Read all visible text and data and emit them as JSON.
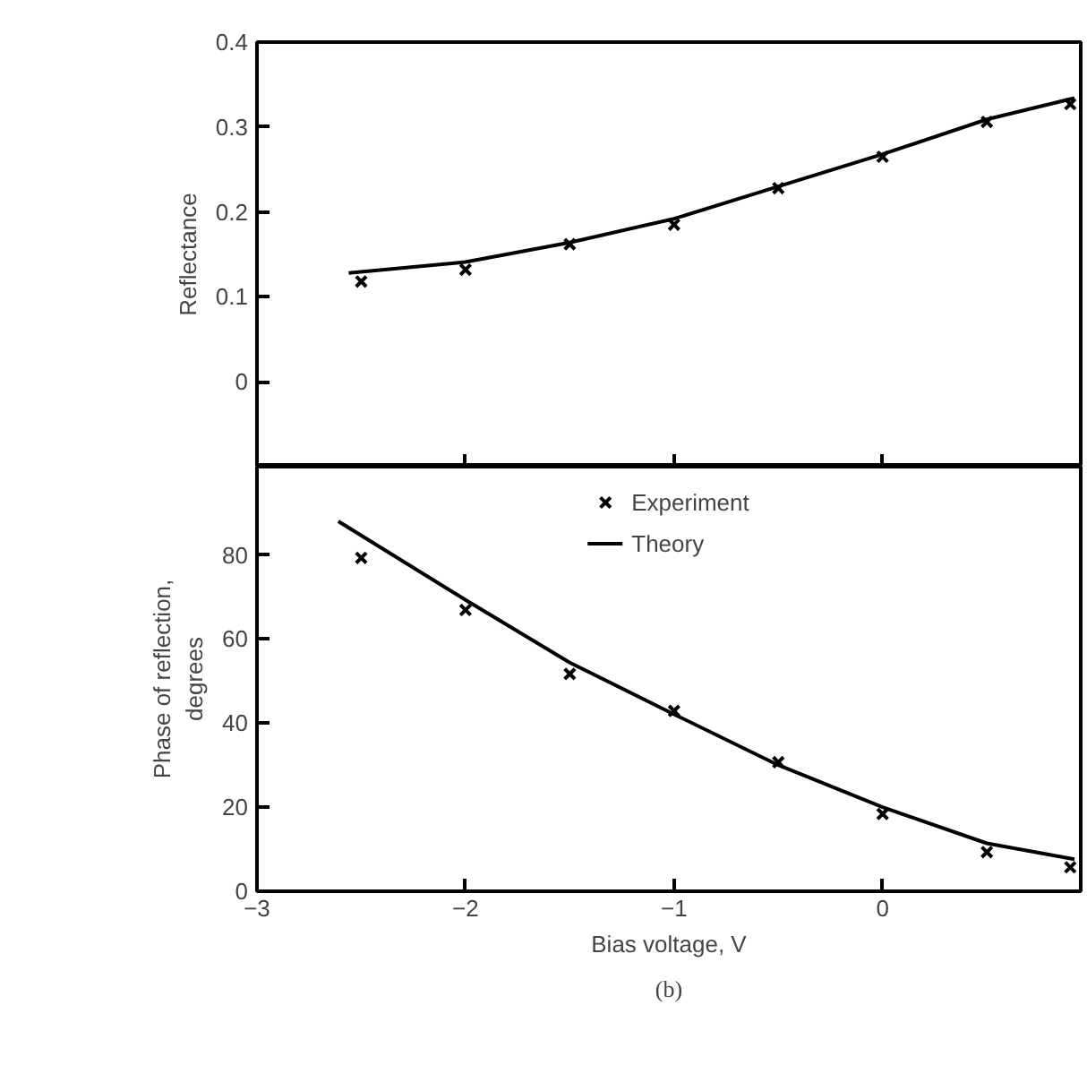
{
  "chart_data": [
    {
      "type": "scatter",
      "ylabel": "Reflectance",
      "xlim": [
        -3,
        0.95
      ],
      "xticks": [
        -3,
        -2,
        -1,
        0
      ],
      "ylim": [
        -0.1,
        0.4
      ],
      "yticks": [
        0,
        0.1,
        0.2,
        0.3,
        0.4
      ],
      "tick_labels": "y",
      "grid": false,
      "legend": false,
      "series": [
        {
          "marker": "cross",
          "color": "#000000",
          "x": [
            -2.5,
            -2,
            -1.5,
            -1,
            -0.5,
            0,
            0.5,
            0.9
          ],
          "values": [
            0.118,
            0.132,
            0.162,
            0.185,
            0.228,
            0.265,
            0.306,
            0.327
          ]
        },
        {
          "type": "line",
          "line_style": "solid",
          "color": "#000000",
          "x": [
            -2.56,
            -2,
            -1.5,
            -1,
            -0.5,
            0,
            0.5,
            0.92
          ],
          "values": [
            0.128,
            0.141,
            0.164,
            0.192,
            0.23,
            0.268,
            0.309,
            0.334
          ]
        }
      ]
    },
    {
      "type": "scatter",
      "xlabel": "Bias voltage, V",
      "ylabel": "Phase of reflection,\ndegrees",
      "xlim": [
        -3,
        0.95
      ],
      "xticks": [
        -3,
        -2,
        -1,
        0
      ],
      "ylim": [
        0,
        101
      ],
      "yticks": [
        0,
        20,
        40,
        60,
        80
      ],
      "grid": false,
      "legend": "top",
      "annotations": [
        "(b)"
      ],
      "series": [
        {
          "name": "Experiment",
          "marker": "cross",
          "color": "#000000",
          "x": [
            -2.5,
            -2,
            -1.5,
            -1,
            -0.5,
            0,
            0.5,
            0.9
          ],
          "values": [
            79.3,
            66.9,
            51.7,
            42.9,
            30.7,
            18.4,
            9.3,
            5.7
          ]
        },
        {
          "type": "line",
          "name": "Theory",
          "line_style": "solid",
          "color": "#000000",
          "x": [
            -2.61,
            -2,
            -1.5,
            -1,
            -0.5,
            0,
            0.5,
            0.92
          ],
          "values": [
            88,
            69.3,
            54.4,
            42.1,
            30,
            20,
            11.4,
            7.6
          ]
        }
      ]
    }
  ]
}
